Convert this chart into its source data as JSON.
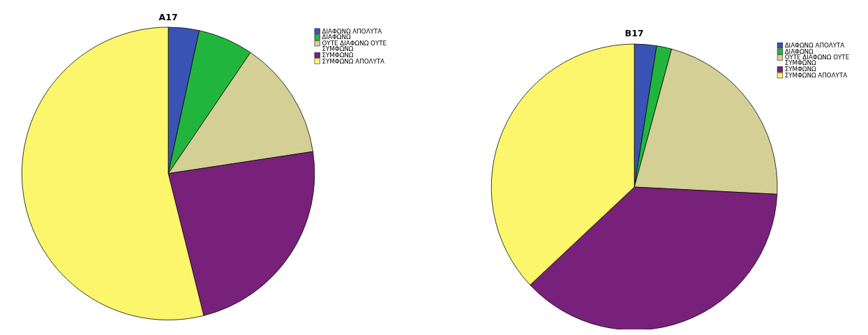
{
  "chart_data": [
    {
      "type": "pie",
      "title": "A17",
      "categories": [
        "ΔΙΑΦΩΝΩ ΑΠΟΛΥΤΑ",
        "ΔΙΑΦΩΝΩ",
        "ΟΥΤΕ ΔΙΑΦΩΝΩ ΟΥΤΕ ΣΥΜΦΩΝΩ",
        "ΣΥΜΦΩΝΩ",
        "ΣΥΜΦΩΝΩ ΑΠΟΛΥΤΑ"
      ],
      "values": [
        3.4,
        6.1,
        13.1,
        23.5,
        53.9
      ],
      "colors": [
        "#3953b5",
        "#22b53e",
        "#d4cf94",
        "#78217a",
        "#fbf66c"
      ],
      "legend": "top right"
    },
    {
      "type": "pie",
      "title": "B17",
      "categories": [
        "ΔΙΑΦΩΝΩ ΑΠΟΛΥΤΑ",
        "ΔΙΑΦΩΝΩ",
        "ΟΥΤΕ ΔΙΑΦΩΝΩ ΟΥΤΕ ΣΥΜΦΩΝΩ",
        "ΣΥΜΦΩΝΩ",
        "ΣΥΜΦΩΝΩ ΑΠΟΛΥΤΑ"
      ],
      "values": [
        2.5,
        1.7,
        21.6,
        37.2,
        37.0
      ],
      "colors": [
        "#3953b5",
        "#22b53e",
        "#d4cf94",
        "#78217a",
        "#fbf66c"
      ],
      "legend": "top right"
    }
  ]
}
